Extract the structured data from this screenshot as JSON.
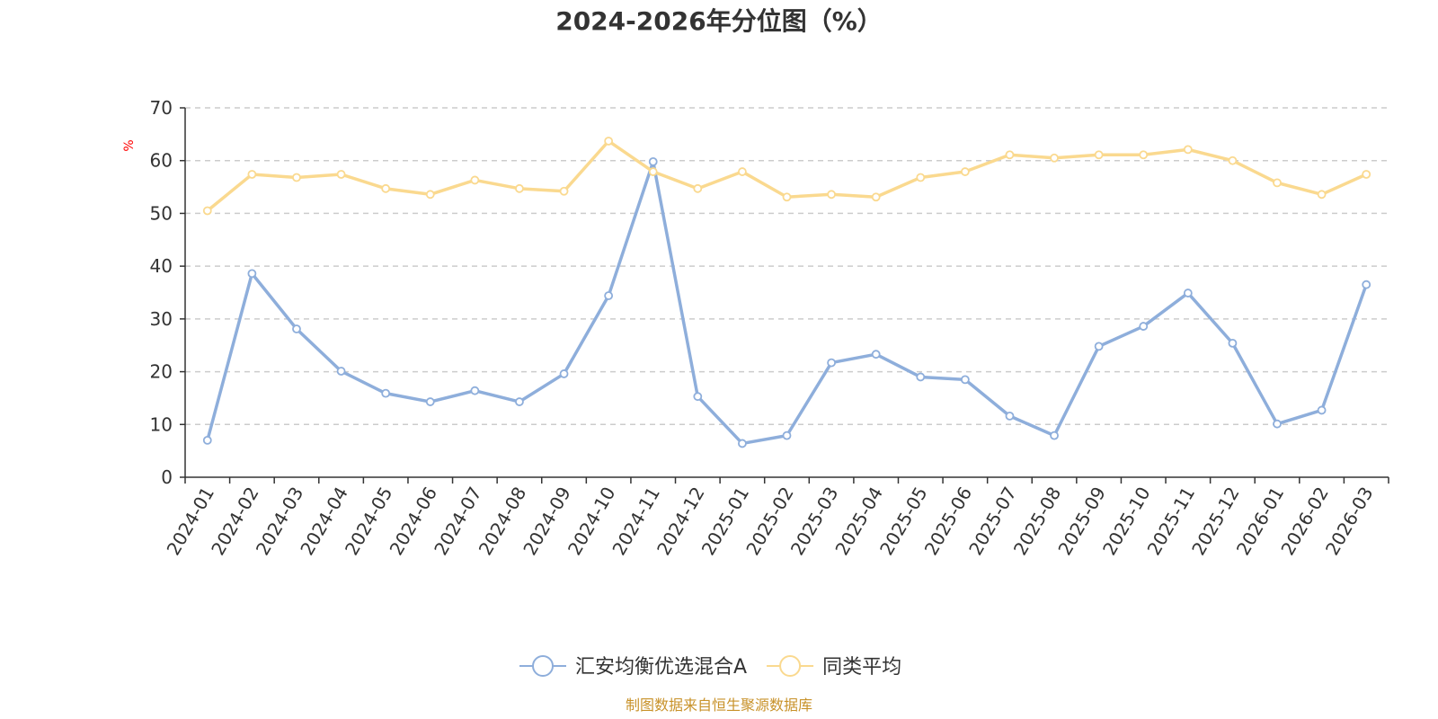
{
  "chart_data": {
    "type": "line",
    "title": "2024-2026年分位图（%）",
    "ylabel": "%",
    "xlabel": "",
    "ylim": [
      0,
      70
    ],
    "yticks": [
      0,
      10,
      20,
      30,
      40,
      50,
      60,
      70
    ],
    "grid": true,
    "legend_position": "bottom",
    "categories": [
      "2024-01",
      "2024-02",
      "2024-03",
      "2024-04",
      "2024-05",
      "2024-06",
      "2024-07",
      "2024-08",
      "2024-09",
      "2024-10",
      "2024-11",
      "2024-12",
      "2025-01",
      "2025-02",
      "2025-03",
      "2025-04",
      "2025-05",
      "2025-06",
      "2025-07",
      "2025-08",
      "2025-09",
      "2025-10",
      "2025-11",
      "2025-12",
      "2026-01",
      "2026-02",
      "2026-03"
    ],
    "series": [
      {
        "name": "汇安均衡优选混合A",
        "color": "#8eaedb",
        "values": [
          7.0,
          38.6,
          28.1,
          20.1,
          15.9,
          14.3,
          16.4,
          14.3,
          19.6,
          34.4,
          59.8,
          15.3,
          6.4,
          7.9,
          21.7,
          23.3,
          19.0,
          18.5,
          11.6,
          7.9,
          24.8,
          28.6,
          34.9,
          25.4,
          10.1,
          12.7,
          36.5
        ]
      },
      {
        "name": "同类平均",
        "color": "#fad98f",
        "values": [
          50.5,
          57.4,
          56.8,
          57.4,
          54.7,
          53.6,
          56.3,
          54.7,
          54.2,
          63.7,
          57.9,
          54.7,
          57.9,
          53.1,
          53.6,
          53.1,
          56.8,
          57.9,
          61.1,
          60.5,
          61.1,
          61.1,
          62.1,
          60.0,
          55.8,
          53.6,
          57.4
        ]
      }
    ],
    "source": "制图数据来自恒生聚源数据库"
  }
}
